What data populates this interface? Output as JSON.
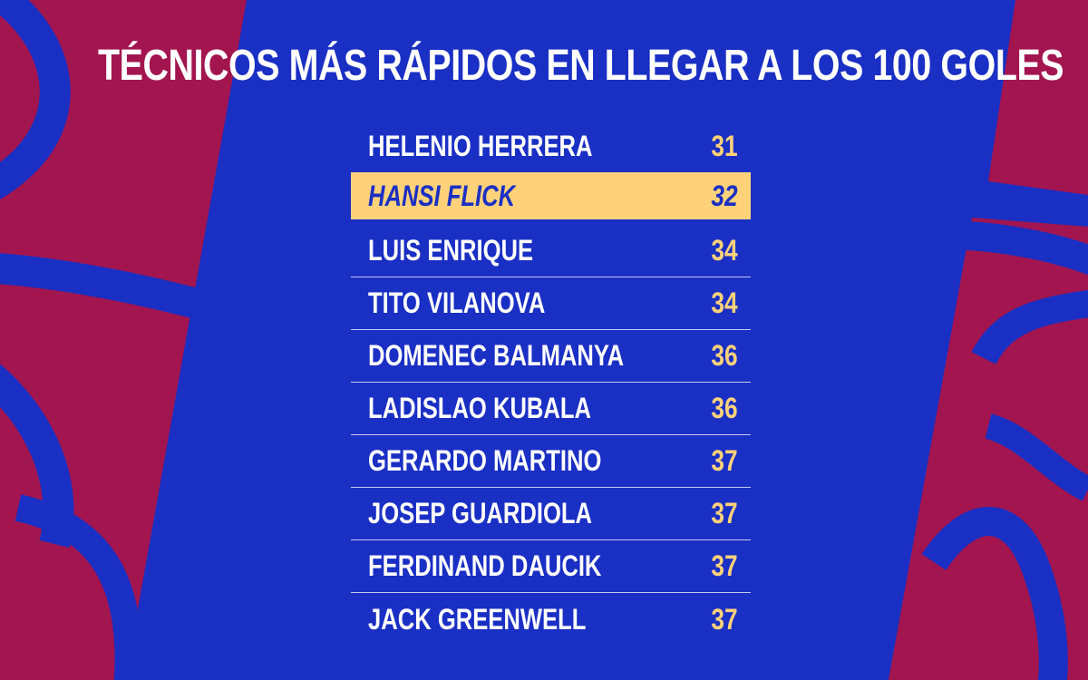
{
  "title": "TÉCNICOS MÁS RÁPIDOS EN LLEGAR A LOS 100 GOLES",
  "colors": {
    "background_blue": "#1a2fc4",
    "background_garnet": "#a3154f",
    "highlight_gold": "#ffd27a",
    "text_white": "#ffffff"
  },
  "ranking": {
    "highlighted_index": 1,
    "rows": [
      {
        "name": "HELENIO HERRERA",
        "value": "31"
      },
      {
        "name": "HANSI FLICK",
        "value": "32"
      },
      {
        "name": "LUIS ENRIQUE",
        "value": "34"
      },
      {
        "name": "TITO VILANOVA",
        "value": "34"
      },
      {
        "name": "DOMENEC BALMANYA",
        "value": "36"
      },
      {
        "name": "LADISLAO KUBALA",
        "value": "36"
      },
      {
        "name": "GERARDO MARTINO",
        "value": "37"
      },
      {
        "name": "JOSEP GUARDIOLA",
        "value": "37"
      },
      {
        "name": "FERDINAND DAUCIK",
        "value": "37"
      },
      {
        "name": "JACK GREENWELL",
        "value": "37"
      }
    ]
  }
}
